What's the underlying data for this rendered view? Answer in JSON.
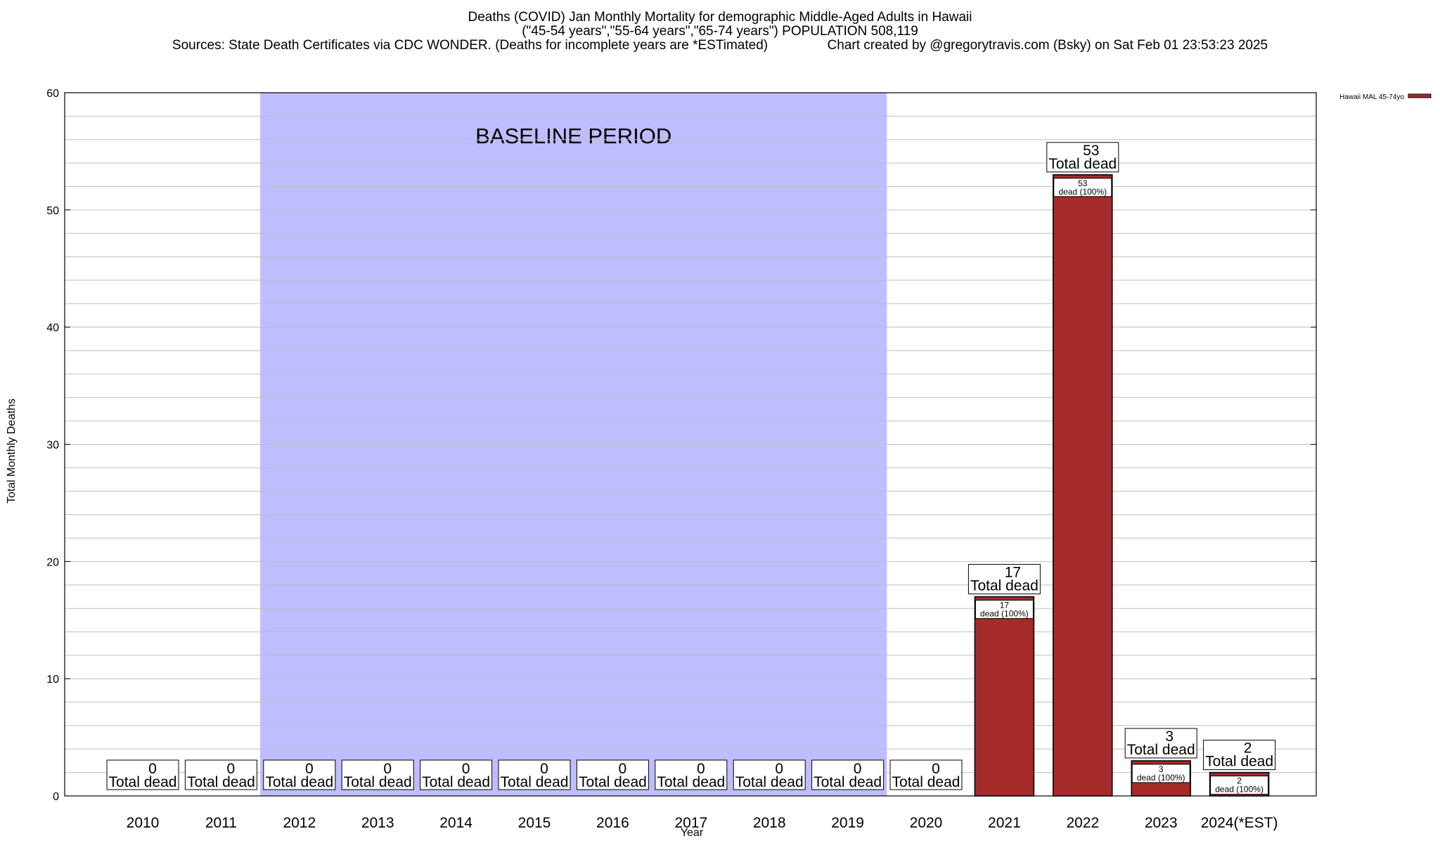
{
  "header": {
    "title_line1": "Deaths (COVID) Jan Monthly Mortality for demographic Middle-Aged Adults in Hawaii",
    "title_line2": "(\"45-54 years\",\"55-64 years\",\"65-74 years\") POPULATION 508,119",
    "title_line3": "Sources: State Death Certificates via CDC WONDER. (Deaths for incomplete years are *ESTimated)                Chart created by @gregorytravis.com (Bsky) on Sat Feb 01 23:53:23 2025"
  },
  "colors": {
    "bar_fill": "#a52a2a",
    "baseline_fill": "#bdbdff",
    "grid": "#bfbfbf"
  },
  "chart_data": {
    "type": "bar",
    "xlabel": "Year",
    "ylabel": "Total Monthly Deaths",
    "ylim": [
      0,
      60
    ],
    "yticks": [
      0,
      10,
      20,
      30,
      40,
      50,
      60
    ],
    "grid": true,
    "legend": {
      "label": "Hawaii MAL 45-74yo",
      "position": "top-right"
    },
    "baseline": {
      "label": "BASELINE PERIOD",
      "from": "2012",
      "to": "2019"
    },
    "categories": [
      "2010",
      "2011",
      "2012",
      "2013",
      "2014",
      "2015",
      "2016",
      "2017",
      "2018",
      "2019",
      "2020",
      "2021",
      "2022",
      "2023",
      "2024(*EST)"
    ],
    "values": [
      0,
      0,
      0,
      0,
      0,
      0,
      0,
      0,
      0,
      0,
      0,
      17,
      53,
      3,
      2
    ],
    "total_label": "Total dead",
    "inner_label_suffix": "dead (100%)"
  }
}
